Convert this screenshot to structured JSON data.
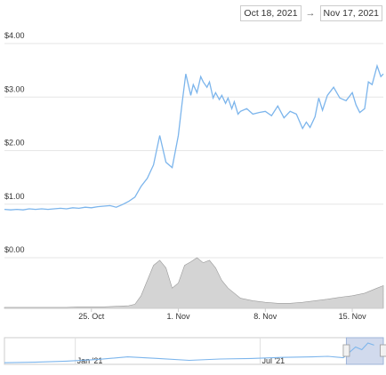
{
  "date_range": {
    "from": "Oct 18, 2021",
    "to": "Nov 17, 2021",
    "arrow": "→"
  },
  "chart_data": {
    "type": "line",
    "y_ticks": [
      "$4.00",
      "$3.00",
      "$2.00",
      "$1.00",
      "$0.00"
    ],
    "y_values": [
      4,
      3,
      2,
      1,
      0
    ],
    "ylim": [
      0,
      4
    ],
    "x_tick_labels": [
      "25. Oct",
      "1. Nov",
      "8. Nov",
      "15. Nov"
    ],
    "x_tick_days": [
      7,
      14,
      21,
      28
    ],
    "x_range_days": [
      0,
      30.5
    ],
    "colors": {
      "line": "#7cb5ec",
      "volume_fill": "#d4d4d4",
      "volume_stroke": "#9a9a9a",
      "grid": "#e6e6e6"
    },
    "series": [
      {
        "type": "line",
        "x_days": [
          0,
          0.5,
          1,
          1.5,
          2,
          2.5,
          3,
          3.5,
          4,
          4.5,
          5,
          5.5,
          6,
          6.5,
          7,
          7.5,
          8,
          8.5,
          9,
          9.5,
          10,
          10.5,
          11,
          11.5,
          12,
          12.5,
          13,
          13.5,
          14,
          14.3,
          14.6,
          15,
          15.2,
          15.5,
          15.8,
          16,
          16.3,
          16.5,
          16.8,
          17,
          17.3,
          17.5,
          17.8,
          18,
          18.3,
          18.5,
          18.8,
          19,
          19.5,
          20,
          20.5,
          21,
          21.5,
          22,
          22.5,
          23,
          23.5,
          24,
          24.3,
          24.6,
          25,
          25.3,
          25.6,
          26,
          26.5,
          27,
          27.5,
          28,
          28.3,
          28.6,
          29,
          29.3,
          29.6,
          30,
          30.3,
          30.5
        ],
        "values": [
          0.77,
          0.76,
          0.77,
          0.76,
          0.78,
          0.77,
          0.78,
          0.77,
          0.78,
          0.79,
          0.78,
          0.8,
          0.79,
          0.81,
          0.8,
          0.82,
          0.83,
          0.84,
          0.81,
          0.86,
          0.92,
          1.0,
          1.2,
          1.35,
          1.6,
          2.15,
          1.65,
          1.55,
          2.15,
          2.75,
          3.3,
          2.9,
          3.1,
          2.95,
          3.25,
          3.15,
          3.05,
          3.15,
          2.85,
          2.95,
          2.82,
          2.9,
          2.75,
          2.85,
          2.65,
          2.78,
          2.55,
          2.6,
          2.65,
          2.55,
          2.58,
          2.6,
          2.52,
          2.7,
          2.48,
          2.6,
          2.55,
          2.28,
          2.4,
          2.3,
          2.5,
          2.85,
          2.62,
          2.9,
          3.05,
          2.85,
          2.8,
          2.95,
          2.72,
          2.58,
          2.65,
          3.15,
          3.1,
          3.45,
          3.25,
          3.3
        ]
      },
      {
        "type": "volume",
        "x_days": [
          0,
          1,
          2,
          3,
          4,
          5,
          6,
          7,
          8,
          9,
          10,
          10.5,
          11,
          11.5,
          12,
          12.5,
          13,
          13.5,
          14,
          14.5,
          15,
          15.5,
          16,
          16.5,
          17,
          17.5,
          18,
          19,
          20,
          21,
          22,
          23,
          24,
          25,
          26,
          27,
          28,
          29,
          30,
          30.5
        ],
        "values": [
          0.02,
          0.02,
          0.02,
          0.02,
          0.02,
          0.02,
          0.03,
          0.03,
          0.03,
          0.04,
          0.05,
          0.08,
          0.25,
          0.55,
          0.85,
          0.95,
          0.8,
          0.4,
          0.5,
          0.85,
          0.92,
          1.0,
          0.9,
          0.95,
          0.8,
          0.55,
          0.4,
          0.2,
          0.15,
          0.12,
          0.1,
          0.1,
          0.12,
          0.15,
          0.18,
          0.22,
          0.25,
          0.3,
          0.4,
          0.45
        ]
      },
      {
        "type": "navigator",
        "x_months": [
          0,
          1,
          2,
          3,
          4,
          5,
          6,
          7,
          8,
          9,
          10,
          10.5,
          11,
          11.2,
          11.4,
          11.6,
          11.8,
          12
        ],
        "values": [
          0.06,
          0.08,
          0.12,
          0.18,
          0.28,
          0.22,
          0.15,
          0.2,
          0.22,
          0.26,
          0.28,
          0.3,
          0.25,
          0.45,
          0.65,
          0.55,
          0.8,
          0.72
        ]
      }
    ],
    "navigator_tick_labels": [
      "Jan '21",
      "Jul '21"
    ],
    "navigator_tick_months": [
      2.3,
      8.3
    ],
    "navigator_range_months": [
      0,
      12.3
    ],
    "navigator_window_months": [
      11.1,
      12.3
    ]
  }
}
